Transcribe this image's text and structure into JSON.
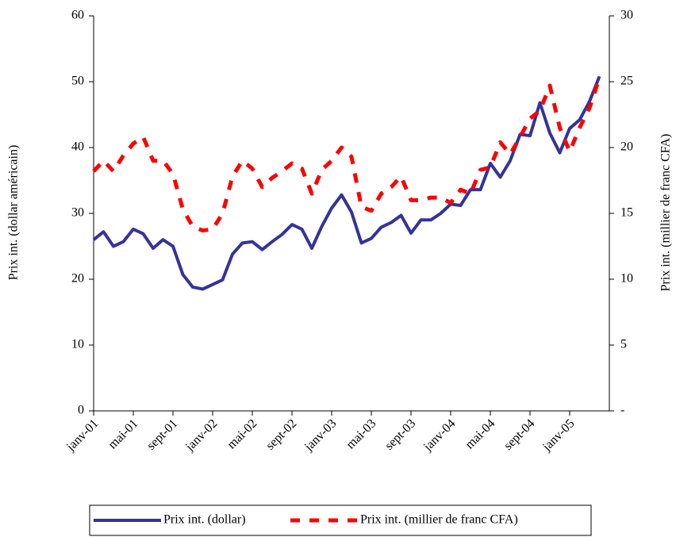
{
  "chart_data": {
    "type": "line",
    "categories": [
      "janv-01",
      null,
      null,
      null,
      "mai-01",
      null,
      null,
      null,
      "sept-01",
      null,
      null,
      null,
      "janv-02",
      null,
      null,
      null,
      "mai-02",
      null,
      null,
      null,
      "sept-02",
      null,
      null,
      null,
      "janv-03",
      null,
      null,
      null,
      "mai-03",
      null,
      null,
      null,
      "sept-03",
      null,
      null,
      null,
      "janv-04",
      null,
      null,
      null,
      "mai-04",
      null,
      null,
      null,
      "sept-04",
      null,
      null,
      null,
      "janv-05",
      null,
      null,
      null
    ],
    "series": [
      {
        "name": "Prix int. (dollar)",
        "color": "#33339a",
        "axis": "y",
        "values": [
          26,
          27.2,
          25,
          25.7,
          27.6,
          26.9,
          24.7,
          26,
          25,
          20.7,
          18.8,
          18.5,
          19.2,
          19.9,
          23.8,
          25.5,
          25.7,
          24.5,
          25.7,
          26.8,
          28.3,
          27.6,
          24.7,
          28,
          30.8,
          32.8,
          30.2,
          25.5,
          26.2,
          27.9,
          28.6,
          29.7,
          27,
          29,
          29,
          30,
          31.4,
          31.2,
          33.6,
          33.6,
          37.6,
          35.5,
          38,
          42,
          41.8,
          46.8,
          42.2,
          39.2,
          42.9,
          44.2,
          47,
          50.8
        ]
      },
      {
        "name": "Prix int. (millier de franc CFA)",
        "color": "#ff0000",
        "axis": "y2",
        "values": [
          18.2,
          19,
          18.2,
          19.4,
          20.3,
          20.8,
          19,
          19,
          18,
          15.3,
          14,
          13.7,
          13.8,
          15,
          17.8,
          19,
          18.4,
          17,
          17.7,
          18.2,
          18.8,
          18.4,
          16.5,
          18.3,
          19,
          20,
          19.3,
          15.5,
          15.2,
          16.5,
          17,
          17.8,
          16,
          16,
          16.2,
          16.2,
          15.8,
          16.8,
          16.5,
          18.3,
          18.5,
          20.4,
          19.5,
          20.8,
          22.2,
          22.8,
          24.7,
          21.5,
          19.7,
          21.5,
          23,
          25.3
        ]
      }
    ],
    "ylabel": "Prix int. (dollar américain)",
    "y2label": "Prix int. (millier de franc CFA)",
    "ylim": [
      0,
      60
    ],
    "yticks": [
      0,
      10,
      20,
      30,
      40,
      50,
      60
    ],
    "y2lim": [
      0,
      30
    ],
    "y2ticks": [
      {
        "value": 0,
        "label": "-"
      },
      5,
      10,
      15,
      20,
      25,
      30
    ]
  }
}
